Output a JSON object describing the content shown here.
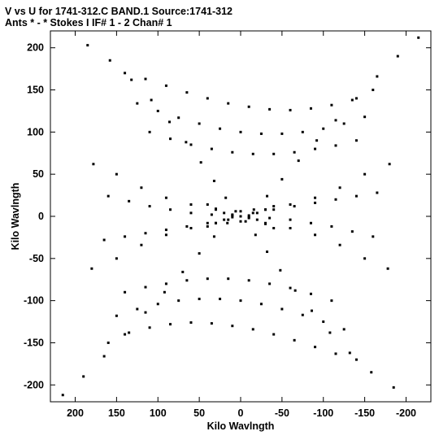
{
  "header": {
    "line1": "V vs U for 1741-312.C BAND.1   Source:1741-312",
    "line2": "Ants * - *    Stokes I  IF# 1 - 2  Chan# 1"
  },
  "chart_data": {
    "type": "scatter",
    "title": "V vs U for 1741-312.C BAND.1   Source:1741-312",
    "subtitle": "Ants * - *    Stokes I  IF# 1 - 2  Chan# 1",
    "xlabel": "Kilo Wavlngth",
    "ylabel": "Kilo Wavlngth",
    "xlim": [
      230,
      -230
    ],
    "ylim": [
      -220,
      220
    ],
    "x_ticks": [
      200,
      150,
      100,
      50,
      0,
      -50,
      -100,
      -150,
      -200
    ],
    "x_tick_labels": [
      "200",
      "150",
      "100",
      "50",
      "0",
      "-50",
      "-100",
      "-150",
      "-200"
    ],
    "y_ticks": [
      200,
      150,
      100,
      50,
      0,
      -50,
      -100,
      -150,
      -200
    ],
    "y_tick_labels": [
      "200",
      "150",
      "100",
      "50",
      "0",
      "-50",
      "-100",
      "-150",
      "-200"
    ],
    "grid": false,
    "legend": "none",
    "marker_color": "#000000",
    "tracks": [
      {
        "u": [
          185,
          158,
          132,
          108,
          86,
          66,
          48,
          32,
          18,
          6
        ],
        "v": [
          203,
          185,
          162,
          138,
          112,
          88,
          64,
          42,
          22,
          6
        ]
      },
      {
        "u": [
          -6,
          -18,
          -32,
          -48,
          -66,
          -86,
          -108,
          -132,
          -158,
          -185
        ],
        "v": [
          -6,
          -22,
          -42,
          -64,
          -88,
          -112,
          -138,
          -162,
          -185,
          -203
        ]
      },
      {
        "u": [
          -215,
          -190,
          -165,
          -140,
          -115,
          -92,
          -70,
          -50,
          -32,
          -16
        ],
        "v": [
          212,
          190,
          166,
          140,
          114,
          90,
          66,
          44,
          24,
          8
        ]
      },
      {
        "u": [
          16,
          32,
          50,
          70,
          92,
          115,
          140,
          165,
          190,
          215
        ],
        "v": [
          -8,
          -24,
          -44,
          -66,
          -90,
          -114,
          -140,
          -166,
          -190,
          -212
        ]
      },
      {
        "u": [
          -180,
          -150,
          -120,
          -90,
          -60,
          -30,
          0,
          30,
          60,
          90,
          120,
          150,
          178
        ],
        "v": [
          62,
          50,
          34,
          22,
          14,
          8,
          6,
          8,
          14,
          22,
          34,
          50,
          62
        ]
      },
      {
        "u": [
          -178,
          -150,
          -120,
          -90,
          -60,
          -30,
          0,
          30,
          60,
          90,
          120,
          150,
          180
        ],
        "v": [
          -62,
          -50,
          -34,
          -22,
          -14,
          -8,
          -6,
          -8,
          -14,
          -22,
          -34,
          -50,
          -62
        ]
      },
      {
        "u": [
          -160,
          -135,
          -110,
          -85,
          -60,
          -35,
          -10,
          15,
          40,
          65,
          90,
          115,
          140
        ],
        "v": [
          150,
          138,
          132,
          128,
          126,
          127,
          130,
          134,
          140,
          147,
          155,
          163,
          170
        ]
      },
      {
        "u": [
          -140,
          -115,
          -90,
          -65,
          -40,
          -15,
          10,
          35,
          60,
          85,
          110,
          135,
          160
        ],
        "v": [
          -170,
          -163,
          -155,
          -147,
          -140,
          -134,
          -130,
          -127,
          -126,
          -128,
          -132,
          -138,
          -150
        ]
      },
      {
        "u": [
          -150,
          -125,
          -100,
          -75,
          -50,
          -25,
          0,
          25,
          50,
          75,
          100,
          125
        ],
        "v": [
          118,
          110,
          104,
          100,
          98,
          98,
          100,
          104,
          110,
          117,
          125,
          134
        ]
      },
      {
        "u": [
          -125,
          -100,
          -75,
          -50,
          -25,
          0,
          25,
          50,
          75,
          100,
          125,
          150
        ],
        "v": [
          -134,
          -125,
          -117,
          -110,
          -104,
          -100,
          -98,
          -98,
          -100,
          -104,
          -110,
          -118
        ]
      },
      {
        "u": [
          -140,
          -115,
          -90,
          -65,
          -40,
          -15,
          10,
          35,
          60,
          85,
          110
        ],
        "v": [
          90,
          84,
          80,
          76,
          74,
          74,
          76,
          80,
          85,
          92,
          100
        ]
      },
      {
        "u": [
          -110,
          -85,
          -60,
          -35,
          -10,
          15,
          40,
          65,
          90,
          115,
          140
        ],
        "v": [
          -100,
          -92,
          -85,
          -80,
          -76,
          -74,
          -74,
          -76,
          -80,
          -84,
          -90
        ]
      },
      {
        "u": [
          -165,
          -140,
          -115,
          -90,
          -65,
          -40,
          -15,
          10,
          35,
          60,
          85,
          110,
          135,
          160
        ],
        "v": [
          28,
          24,
          20,
          16,
          12,
          8,
          4,
          2,
          2,
          4,
          8,
          12,
          18,
          24
        ]
      },
      {
        "u": [
          -160,
          -135,
          -110,
          -85,
          -60,
          -35,
          -10,
          15,
          40,
          65,
          90,
          115,
          140,
          165
        ],
        "v": [
          -24,
          -18,
          -12,
          -8,
          -4,
          -2,
          -2,
          -4,
          -8,
          -12,
          -16,
          -20,
          -24,
          -28
        ]
      },
      {
        "u": [
          -40,
          -30,
          -20,
          -10,
          0,
          10,
          20,
          30,
          40
        ],
        "v": [
          12,
          8,
          4,
          1,
          0,
          -1,
          -4,
          -8,
          -12
        ]
      },
      {
        "u": [
          -40,
          -30,
          -20,
          -10,
          0,
          10,
          20,
          30,
          40
        ],
        "v": [
          -14,
          -9,
          -4,
          -1,
          0,
          1,
          4,
          9,
          14
        ]
      }
    ]
  }
}
